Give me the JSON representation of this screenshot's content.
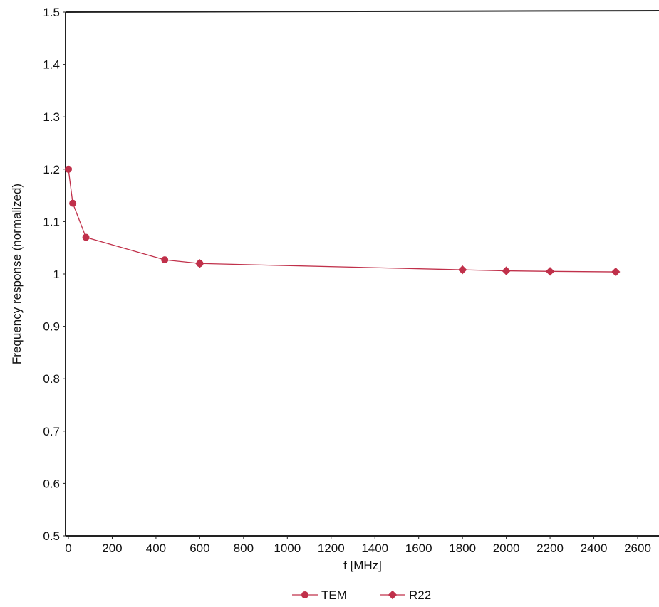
{
  "chart_data": {
    "type": "line",
    "xlabel": "f [MHz]",
    "ylabel": "Frequency response (normalized)",
    "xlim": [
      0,
      2600
    ],
    "ylim": [
      0.5,
      1.5
    ],
    "x_ticks": [
      "0",
      "200",
      "400",
      "600",
      "800",
      "1000",
      "1200",
      "1400",
      "1600",
      "1800",
      "2000",
      "2200",
      "2400",
      "2600"
    ],
    "y_ticks": [
      "0.5",
      "0.6",
      "0.7",
      "0.8",
      "0.9",
      "1",
      "1.1",
      "1.2",
      "1.3",
      "1.4",
      "1.5"
    ],
    "grid": false,
    "legend_position": "bottom",
    "series": [
      {
        "name": "TEM",
        "marker": "circle",
        "color": "#c0304a",
        "x": [
          0,
          20,
          80,
          440,
          600
        ],
        "y": [
          1.2,
          1.135,
          1.07,
          1.027,
          1.02
        ]
      },
      {
        "name": "R22",
        "marker": "diamond",
        "color": "#c0304a",
        "x": [
          600,
          1800,
          2000,
          2200,
          2500
        ],
        "y": [
          1.02,
          1.008,
          1.006,
          1.005,
          1.004
        ]
      }
    ]
  }
}
